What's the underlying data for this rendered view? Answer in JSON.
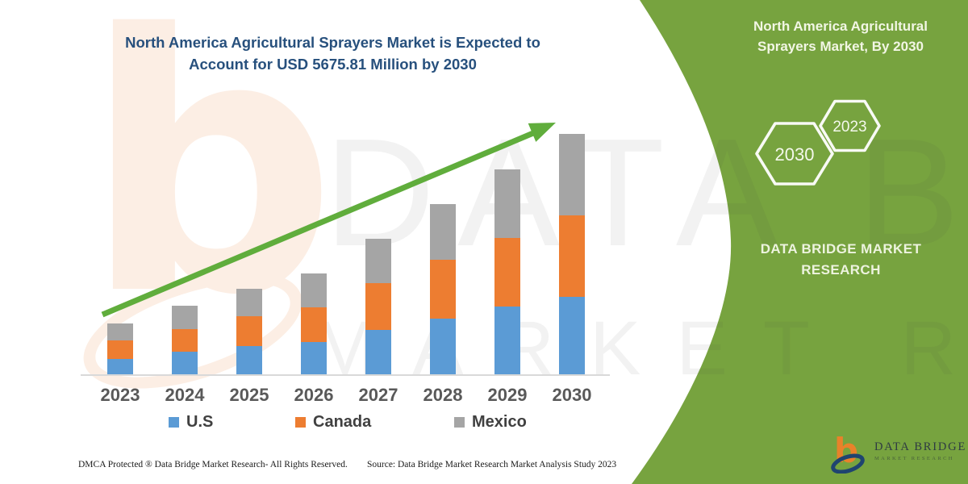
{
  "header": {
    "title_line1": "North America Agricultural Sprayers Market is Expected to",
    "title_line2": "Account for USD 5675.81 Million by 2030"
  },
  "chart_data": {
    "type": "bar",
    "stacked": true,
    "unit": "USD Million",
    "title": "North America Agricultural Sprayers Market is Expected to Account for USD 5675.81 Million by 2030",
    "categories": [
      "2023",
      "2024",
      "2025",
      "2026",
      "2027",
      "2028",
      "2029",
      "2030"
    ],
    "series": [
      {
        "name": "U.S",
        "color": "#5B9BD5",
        "values": [
          360,
          535,
          665,
          760,
          1050,
          1315,
          1600,
          1830
        ]
      },
      {
        "name": "Canada",
        "color": "#ED7D31",
        "values": [
          440,
          535,
          705,
          820,
          1105,
          1390,
          1620,
          1925
        ]
      },
      {
        "name": "Mexico",
        "color": "#A5A5A5",
        "values": [
          400,
          550,
          650,
          800,
          1045,
          1315,
          1620,
          1920.81
        ]
      }
    ],
    "total_2030": 5675.81,
    "y_axis_visible": false,
    "gridlines": false,
    "legend_position": "bottom",
    "trend_arrow": true
  },
  "side_panel": {
    "bg_color": "#77A33F",
    "title_line1": "North America Agricultural",
    "title_line2": "Sprayers Market, By 2030",
    "hexagon_large": "2030",
    "hexagon_small": "2023",
    "brand_line1": "DATA BRIDGE MARKET",
    "brand_line2": "RESEARCH"
  },
  "footer": {
    "dmca": "DMCA Protected ® Data Bridge Market Research-  All Rights Reserved.",
    "source": "Source: Data Bridge Market Research  Market Analysis Study 2023"
  },
  "logo": {
    "brand": "DATA BRIDGE",
    "tagline": "MARKET RESEARCH"
  },
  "watermark": {
    "letter": "b",
    "row1": "DATA BRIDGE",
    "row2": "MARKET RESEARCH"
  }
}
